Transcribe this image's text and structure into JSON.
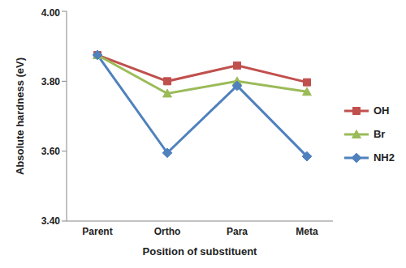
{
  "chart_data": {
    "type": "line",
    "x_label": "Position of substituent",
    "y_label": "Absolute hardness (eV)",
    "categories": [
      "Parent",
      "Ortho",
      "Para",
      "Meta"
    ],
    "series": [
      {
        "name": "OH",
        "color": "#c0504d",
        "marker": "square",
        "values": [
          3.875,
          3.8,
          3.845,
          3.797
        ]
      },
      {
        "name": "Br",
        "color": "#9bbb59",
        "marker": "triangle",
        "values": [
          3.875,
          3.765,
          3.8,
          3.77
        ]
      },
      {
        "name": "NH2",
        "color": "#4f81bd",
        "marker": "diamond",
        "values": [
          3.875,
          3.595,
          3.787,
          3.585
        ]
      }
    ],
    "ylim": [
      3.4,
      4.0
    ],
    "yticks": [
      {
        "value": 3.4,
        "label": "3.40"
      },
      {
        "value": 3.6,
        "label": "3.60"
      },
      {
        "value": 3.8,
        "label": "3.80"
      },
      {
        "value": 4.0,
        "label": "4.00"
      }
    ],
    "grid": false,
    "legend": "right"
  }
}
